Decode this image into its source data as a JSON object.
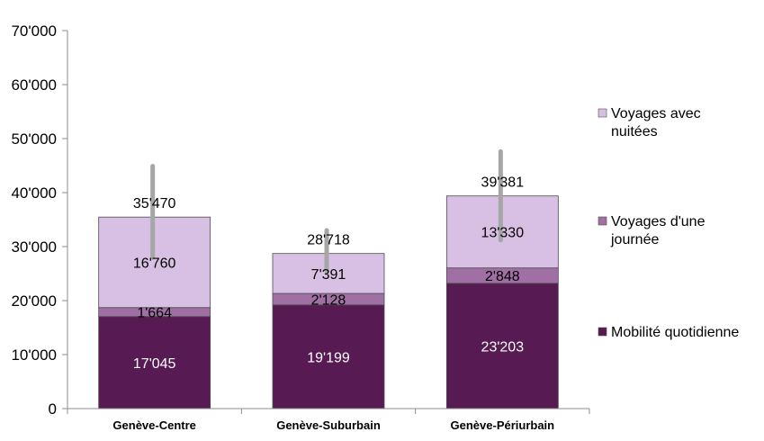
{
  "chart_data": {
    "type": "bar",
    "stacked": true,
    "categories": [
      "Genève-Centre",
      "Genève-Suburbain",
      "Genève-Périurbain"
    ],
    "series": [
      {
        "name": "Mobilité quotidienne",
        "values": [
          17045,
          19199,
          23203
        ],
        "labels": [
          "17'045",
          "19'199",
          "23'203"
        ],
        "color": "#581a52",
        "label_color": "#ffffff"
      },
      {
        "name": "Voyages d'une journée",
        "values": [
          1664,
          2128,
          2848
        ],
        "labels": [
          "1'664",
          "2'128",
          "2'848"
        ],
        "color": "#a070a4",
        "label_color": "#000000"
      },
      {
        "name": "Voyages avec nuitées",
        "values": [
          16760,
          7391,
          13330
        ],
        "labels": [
          "16'760",
          "7'391",
          "13'330"
        ],
        "color": "#d8c0e4",
        "label_color": "#000000"
      }
    ],
    "totals": [
      35470,
      28718,
      39381
    ],
    "total_labels": [
      "35'470",
      "28'718",
      "39'381"
    ],
    "error_bars": [
      [
        28000,
        44900
      ],
      [
        25500,
        33000
      ],
      [
        31200,
        47600
      ]
    ],
    "error_bar_color": "#a6a6a6",
    "ylim": [
      0,
      70000
    ],
    "yticks": [
      0,
      10000,
      20000,
      30000,
      40000,
      50000,
      60000,
      70000
    ],
    "ytick_labels": [
      "0",
      "10'000",
      "20'000",
      "30'000",
      "40'000",
      "50'000",
      "60'000",
      "70'000"
    ],
    "legend": {
      "position": "right",
      "entries": [
        {
          "lines": [
            "Voyages avec",
            "nuitées"
          ],
          "color": "#d8c0e4"
        },
        {
          "lines": [
            "Voyages d'une",
            "journée"
          ],
          "color": "#a070a4"
        },
        {
          "lines": [
            "Mobilité quotidienne"
          ],
          "color": "#581a52"
        }
      ]
    },
    "grid": false
  }
}
